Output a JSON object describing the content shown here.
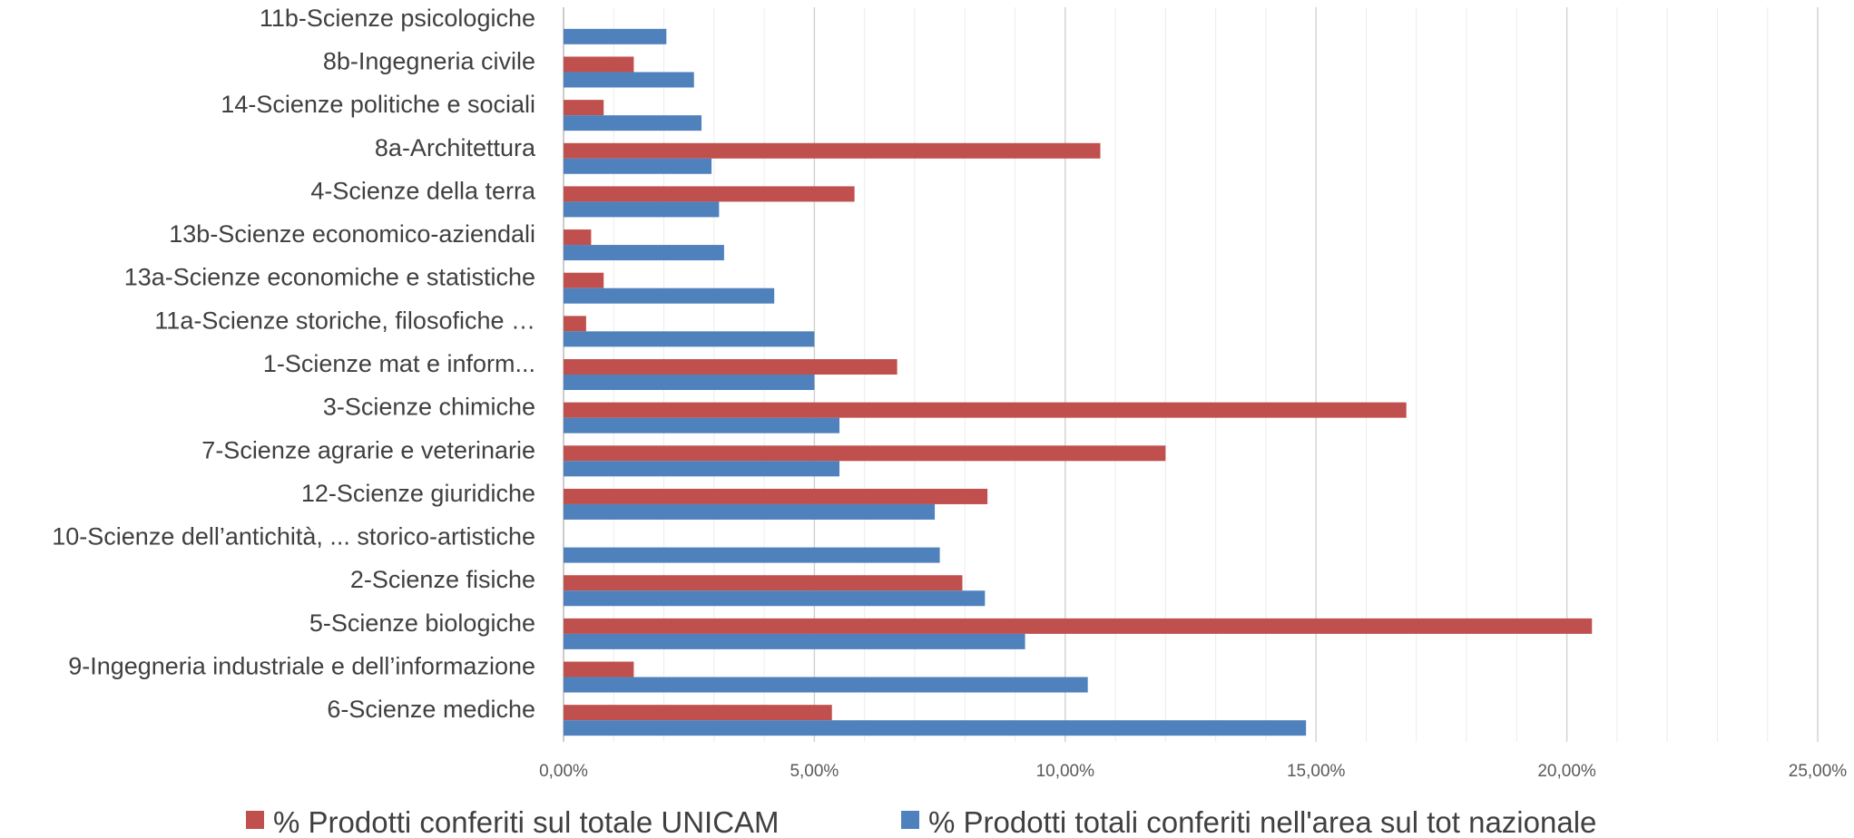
{
  "chart_data": {
    "type": "bar",
    "orientation": "horizontal",
    "categories": [
      "11b-Scienze psicologiche",
      "8b-Ingegneria civile",
      "14-Scienze politiche e sociali",
      "8a-Architettura",
      "4-Scienze della terra",
      "13b-Scienze economico-aziendali",
      "13a-Scienze economiche e statistiche",
      "11a-Scienze storiche, filosofiche …",
      "1-Scienze mat e inform...",
      "3-Scienze chimiche",
      "7-Scienze agrarie e veterinarie",
      "12-Scienze giuridiche",
      "10-Scienze dell’antichità, ... storico-artistiche",
      "2-Scienze fisiche",
      "5-Scienze biologiche",
      "9-Ingegneria industriale e dell’informazione",
      "6-Scienze mediche"
    ],
    "series": [
      {
        "name": "% Prodotti conferiti sul totale UNICAM",
        "color": "#C0504D",
        "values": [
          0,
          1.4,
          0.8,
          10.7,
          5.8,
          0.55,
          0.8,
          0.45,
          6.65,
          16.8,
          12.0,
          8.45,
          0,
          7.95,
          20.5,
          1.4,
          5.35
        ]
      },
      {
        "name": "% Prodotti totali conferiti nell'area sul tot nazionale",
        "color": "#4F81BD",
        "values": [
          2.05,
          2.6,
          2.75,
          2.95,
          3.1,
          3.2,
          4.2,
          5.0,
          5.0,
          5.5,
          5.5,
          7.4,
          7.5,
          8.4,
          9.2,
          10.45,
          14.8
        ]
      }
    ],
    "x_ticks": [
      "0,00%",
      "5,00%",
      "10,00%",
      "15,00%",
      "20,00%",
      "25,00%"
    ],
    "xlim": [
      0,
      25
    ],
    "grid": "vertical, minor every 1%",
    "legend_position": "bottom",
    "title": "",
    "xlabel": "",
    "ylabel": ""
  }
}
